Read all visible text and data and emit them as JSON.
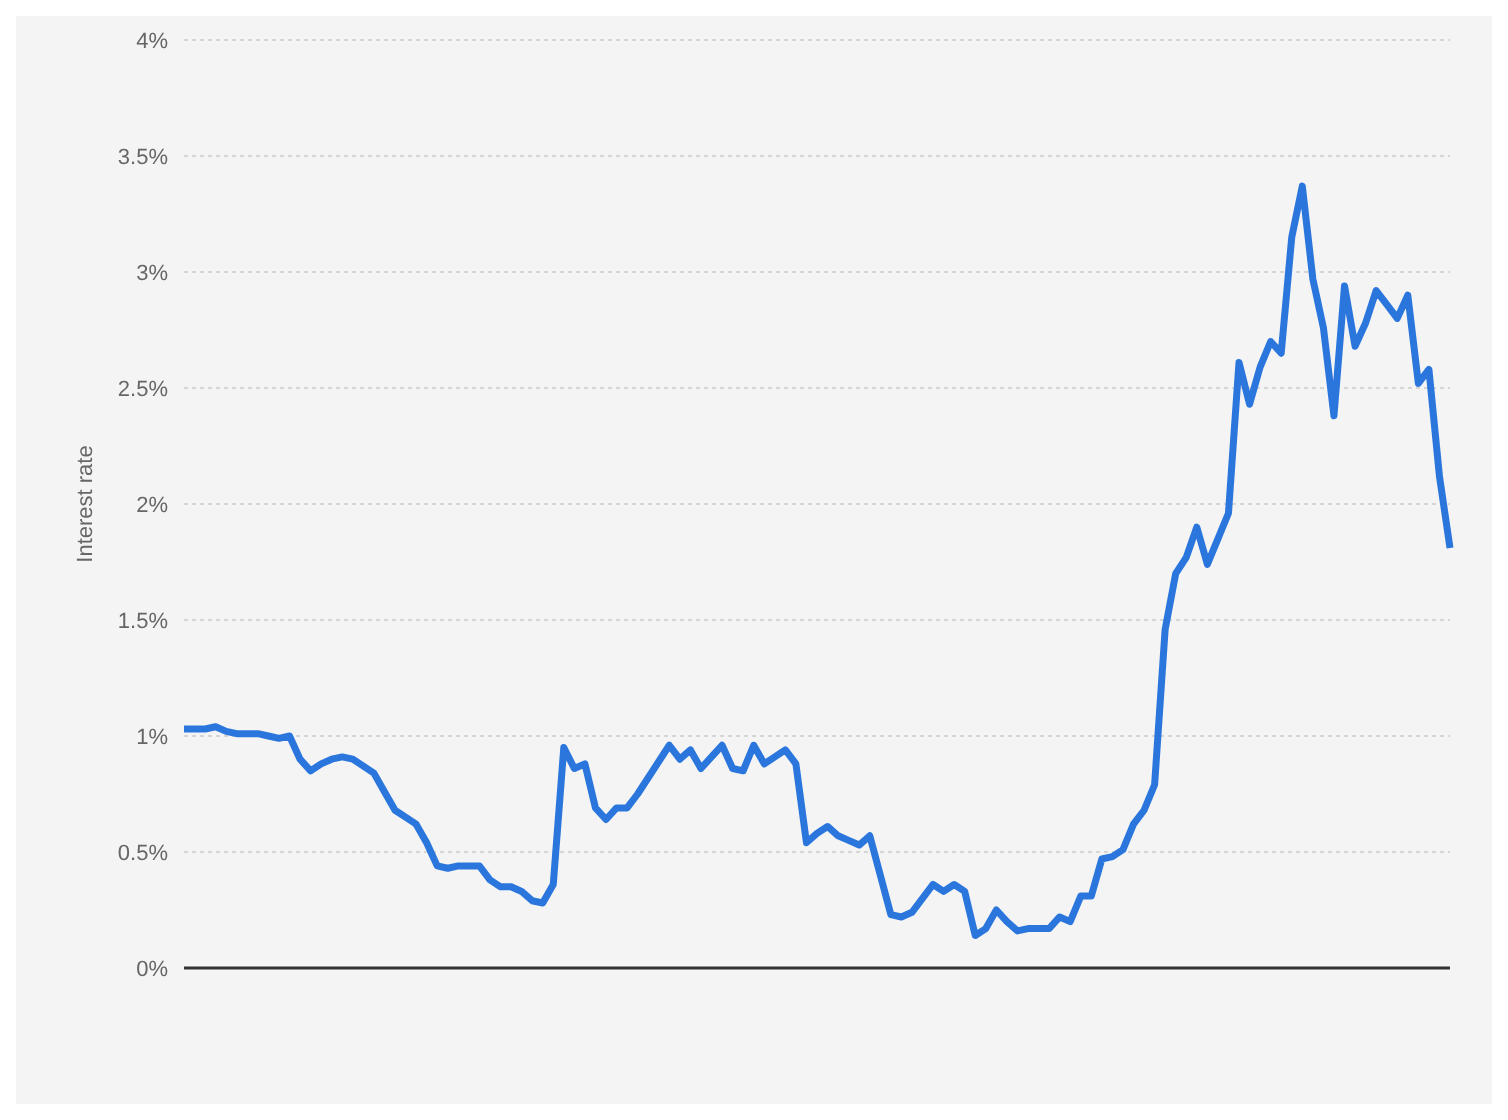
{
  "chart_data": {
    "type": "line",
    "ylabel": "Interest rate",
    "categories": [
      null,
      null,
      null,
      null,
      null,
      null,
      null,
      null,
      null,
      null,
      null,
      null,
      null,
      null,
      null,
      null,
      null,
      null,
      null,
      null,
      null,
      null,
      null,
      null,
      null,
      null,
      null,
      null,
      null,
      null,
      null,
      null,
      null,
      null,
      null,
      null,
      null,
      null,
      null,
      null,
      null,
      null,
      null,
      null,
      null,
      null,
      null,
      null,
      null,
      null,
      null,
      null,
      null,
      null,
      null,
      null,
      null,
      null,
      null,
      null,
      null,
      null,
      null,
      null,
      null,
      null,
      null,
      null,
      null,
      null,
      null,
      null,
      null,
      null,
      null,
      null,
      null,
      null,
      null,
      null,
      null,
      null,
      null,
      null,
      null,
      null,
      null,
      null,
      null,
      null,
      null,
      null,
      null,
      null,
      null,
      null,
      null,
      null,
      null,
      null,
      null,
      null,
      null,
      null,
      null,
      null,
      null,
      null,
      null,
      null,
      null,
      null,
      null,
      null,
      null,
      null,
      null,
      null,
      null,
      null,
      null
    ],
    "series": [
      {
        "color": "#2a76dd",
        "values": [
          1.03,
          1.03,
          1.03,
          1.04,
          1.02,
          1.01,
          1.01,
          1.01,
          1.0,
          0.99,
          1.0,
          0.9,
          0.85,
          0.88,
          0.9,
          0.91,
          0.9,
          0.87,
          0.84,
          0.76,
          0.68,
          0.65,
          0.62,
          0.54,
          0.44,
          0.43,
          0.44,
          0.44,
          0.44,
          0.38,
          0.35,
          0.35,
          0.33,
          0.29,
          0.28,
          0.36,
          0.95,
          0.86,
          0.88,
          0.69,
          0.64,
          0.69,
          0.69,
          0.75,
          0.82,
          0.89,
          0.96,
          0.9,
          0.94,
          0.86,
          0.91,
          0.96,
          0.86,
          0.85,
          0.96,
          0.88,
          0.91,
          0.94,
          0.88,
          0.54,
          0.58,
          0.61,
          0.57,
          0.55,
          0.53,
          0.57,
          0.4,
          0.23,
          0.22,
          0.24,
          0.3,
          0.36,
          0.33,
          0.36,
          0.33,
          0.14,
          0.17,
          0.25,
          0.2,
          0.16,
          0.17,
          0.17,
          0.17,
          0.22,
          0.2,
          0.31,
          0.31,
          0.47,
          0.48,
          0.51,
          0.62,
          0.68,
          0.79,
          1.46,
          1.7,
          1.77,
          1.9,
          1.74,
          1.85,
          1.96,
          2.61,
          2.43,
          2.59,
          2.7,
          2.65,
          3.15,
          3.37,
          2.97,
          2.76,
          2.38,
          2.94,
          2.68,
          2.78,
          2.92,
          2.86,
          2.8,
          2.9,
          2.52,
          2.58,
          2.12,
          1.81
        ]
      }
    ],
    "ylim": [
      0,
      4
    ],
    "yticks": [
      {
        "value": 0,
        "label": "0%"
      },
      {
        "value": 0.5,
        "label": "0.5%"
      },
      {
        "value": 1,
        "label": "1%"
      },
      {
        "value": 1.5,
        "label": "1.5%"
      },
      {
        "value": 2,
        "label": "2%"
      },
      {
        "value": 2.5,
        "label": "2.5%"
      },
      {
        "value": 3,
        "label": "3%"
      },
      {
        "value": 3.5,
        "label": "3.5%"
      },
      {
        "value": 4,
        "label": "4%"
      }
    ],
    "grid": "y",
    "marker": "none",
    "line_style": "solid",
    "legend": false
  }
}
